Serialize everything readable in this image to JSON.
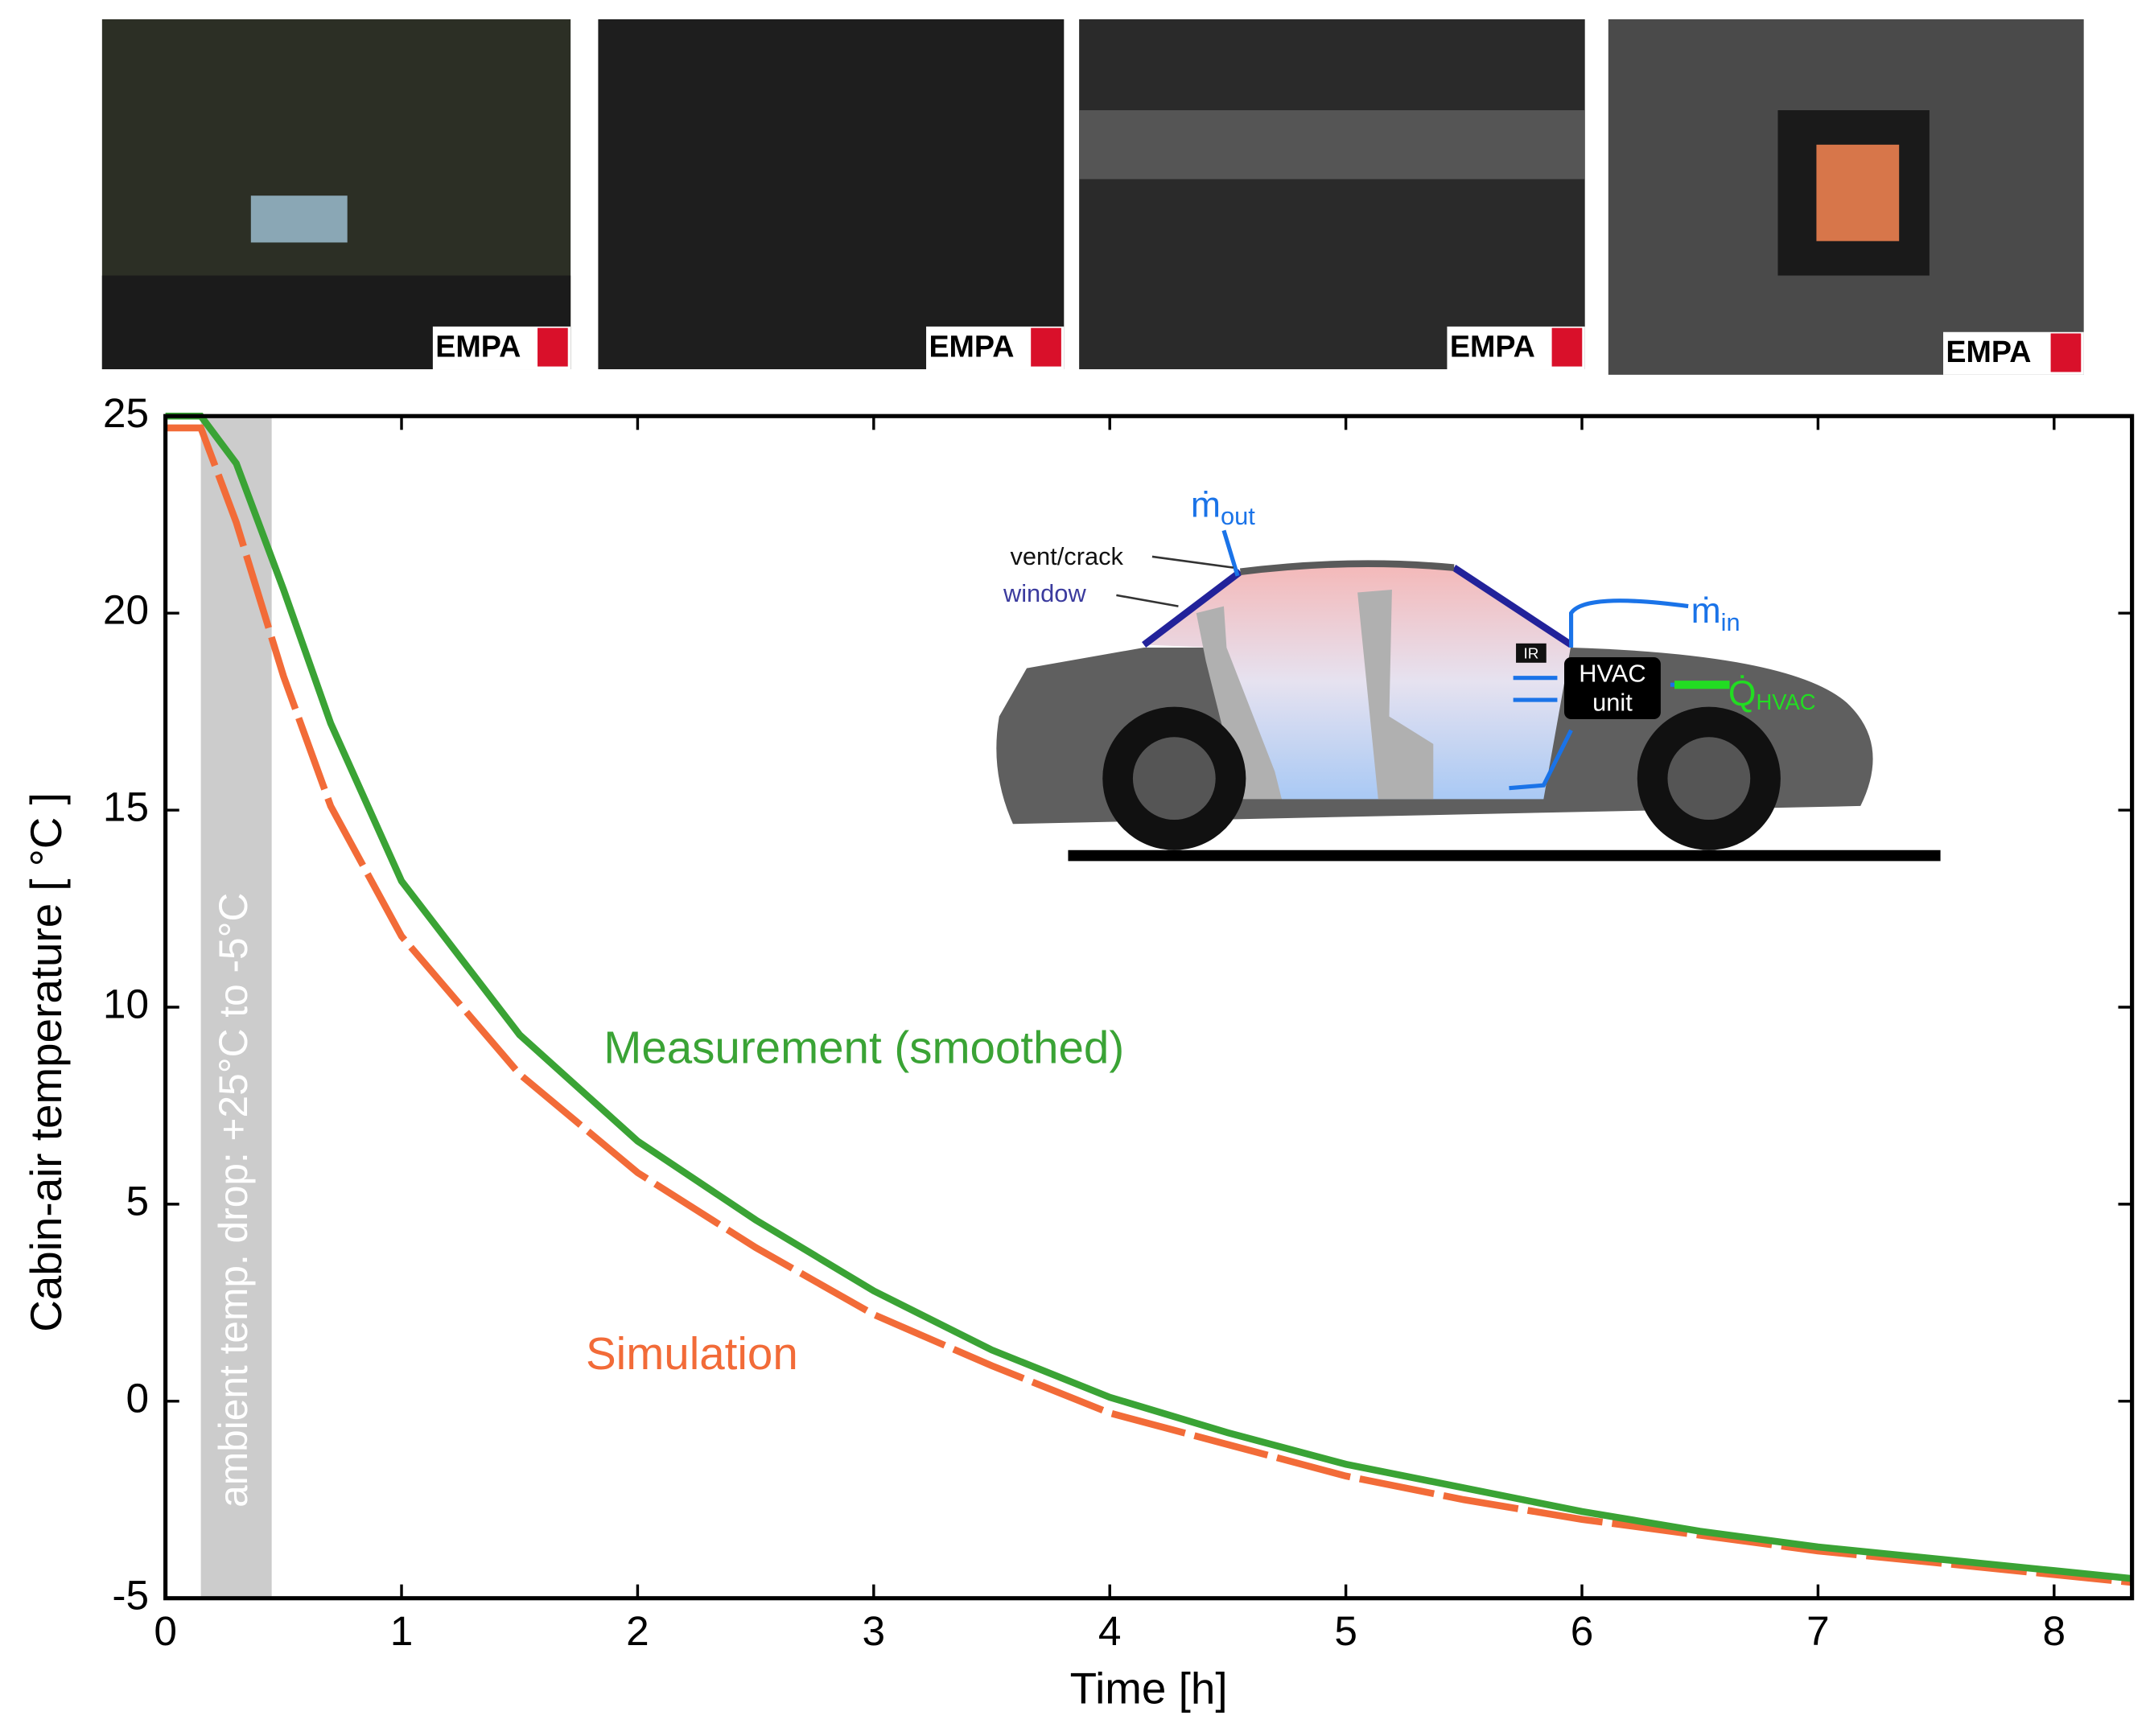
{
  "chart_data": {
    "type": "line",
    "xlabel": "Time [h]",
    "ylabel": "Cabin-air temperature [ °C ]",
    "xlim": [
      0,
      8.33
    ],
    "ylim": [
      -5,
      25
    ],
    "xticks": [
      0,
      1,
      2,
      3,
      4,
      5,
      6,
      7,
      8
    ],
    "yticks": [
      -5,
      0,
      5,
      10,
      15,
      20,
      25
    ],
    "x": [
      0,
      0.15,
      0.3,
      0.5,
      0.7,
      1,
      1.5,
      2,
      2.5,
      3,
      3.5,
      4,
      4.5,
      5,
      5.5,
      6,
      6.5,
      7,
      7.5,
      8,
      8.33
    ],
    "series": [
      {
        "name": "Measurement (smoothed)",
        "color": "#3aa335",
        "dash": false,
        "values": [
          25,
          25,
          23.8,
          20.6,
          17.2,
          13.2,
          9.3,
          6.6,
          4.6,
          2.8,
          1.3,
          0.1,
          -0.8,
          -1.6,
          -2.2,
          -2.8,
          -3.3,
          -3.7,
          -4.0,
          -4.3,
          -4.5
        ]
      },
      {
        "name": "Simulation",
        "color": "#f26b38",
        "dash": true,
        "values": [
          24.7,
          24.7,
          22.3,
          18.4,
          15.1,
          11.8,
          8.3,
          5.8,
          3.9,
          2.2,
          0.9,
          -0.3,
          -1.1,
          -1.9,
          -2.5,
          -3.0,
          -3.4,
          -3.8,
          -4.1,
          -4.4,
          -4.6
        ]
      }
    ],
    "shaded_region": {
      "x": [
        0.15,
        0.45
      ],
      "color": "#cccccc",
      "label": "ambient temp. drop: +25°C to -5°C"
    }
  },
  "photos": [
    {
      "logo": "EMPA"
    },
    {
      "logo": "EMPA"
    },
    {
      "logo": "EMPA"
    },
    {
      "logo": "EMPA"
    }
  ],
  "diagram": {
    "vent_crack": "vent/crack",
    "window": "window",
    "ir": "IR",
    "m_out": {
      "symbol": "ṁ",
      "subscript": "out"
    },
    "m_in": {
      "symbol": "ṁ",
      "subscript": "in"
    },
    "hvac": [
      "HVAC",
      "unit"
    ],
    "q_hvac": {
      "symbol": "Q̇",
      "subscript": "HVAC"
    }
  }
}
